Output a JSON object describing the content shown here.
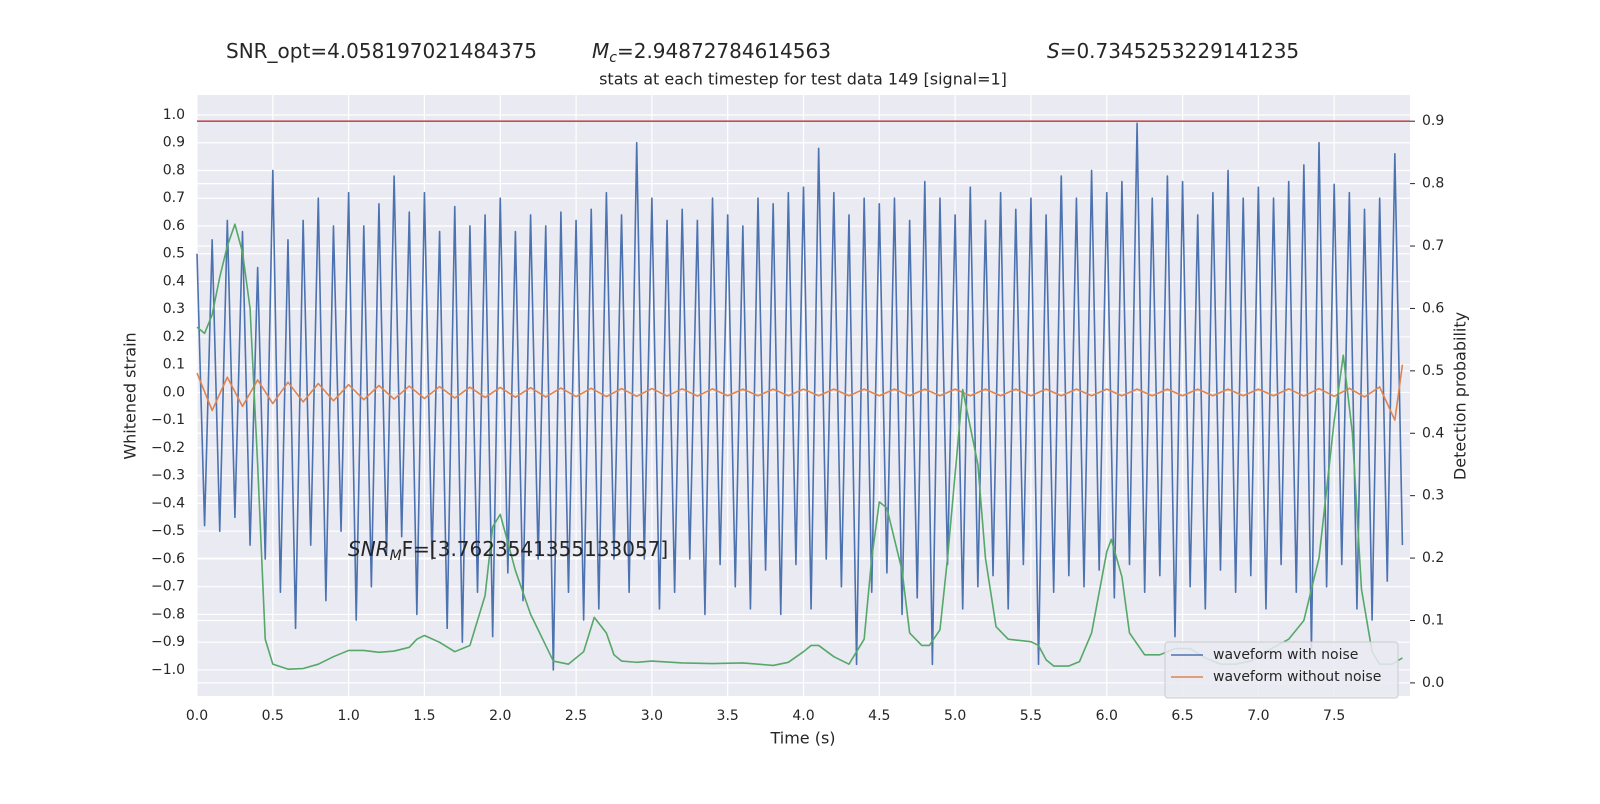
{
  "chart_data": {
    "type": "line",
    "title": "stats at each timestep for test data 149 [signal=1]",
    "stats": [
      {
        "text": "SNR_opt=4.058197021484375"
      },
      {
        "symbol": "M",
        "subscript": "c",
        "text": "=2.94872784614563"
      },
      {
        "symbol": "S",
        "text": "=0.7345253229141235"
      }
    ],
    "annotation": {
      "symbol": "SNR",
      "subscript": "M",
      "text": "F=[3.7623541355133057]"
    },
    "x_label": "Time (s)",
    "y_label": "Whitened strain",
    "y2_label": "Detection probability",
    "xlim": [
      0,
      8.0
    ],
    "ylim": [
      -1.094,
      1.072
    ],
    "y2lim": [
      -0.021,
      0.942
    ],
    "xticks": [
      {
        "value": 0,
        "label": "0.0"
      },
      0.5,
      {
        "value": 1,
        "label": "1.0"
      },
      1.5,
      {
        "value": 2,
        "label": "2.0"
      },
      2.5,
      {
        "value": 3,
        "label": "3.0"
      },
      3.5,
      {
        "value": 4,
        "label": "4.0"
      },
      4.5,
      {
        "value": 5,
        "label": "5.0"
      },
      5.5,
      {
        "value": 6,
        "label": "6.0"
      },
      6.5,
      {
        "value": 7,
        "label": "7.0"
      },
      7.5
    ],
    "yticks": [
      {
        "value": 1,
        "label": "1.0"
      },
      0.9,
      0.8,
      0.7,
      0.6,
      0.5,
      0.4,
      0.3,
      0.2,
      0.1,
      {
        "value": 0,
        "label": "0.0"
      },
      {
        "value": -0.1,
        "label": "−0.1"
      },
      {
        "value": -0.2,
        "label": "−0.2"
      },
      {
        "value": -0.3,
        "label": "−0.3"
      },
      {
        "value": -0.4,
        "label": "−0.4"
      },
      {
        "value": -0.5,
        "label": "−0.5"
      },
      {
        "value": -0.6,
        "label": "−0.6"
      },
      {
        "value": -0.7,
        "label": "−0.7"
      },
      {
        "value": -0.8,
        "label": "−0.8"
      },
      {
        "value": -0.9,
        "label": "−0.9"
      },
      {
        "value": -1,
        "label": "−1.0"
      }
    ],
    "y2ticks": [
      {
        "value": 0,
        "label": "0.0"
      },
      0.1,
      0.2,
      0.3,
      0.4,
      0.5,
      0.6,
      0.7,
      0.8,
      0.9
    ],
    "grid": true,
    "legend": "lower right",
    "hlines": [
      {
        "value": 0.9,
        "axis": "y2",
        "color": "#c44e52"
      }
    ],
    "series": [
      {
        "name": "waveform with noise",
        "color": "#4c72b0",
        "x": [
          0,
          0.05,
          0.1,
          0.15,
          0.2,
          0.25,
          0.3,
          0.35,
          0.4,
          0.45,
          0.5,
          0.55,
          0.6,
          0.65,
          0.7,
          0.75,
          0.8,
          0.85,
          0.9,
          0.95,
          1,
          1.05,
          1.1,
          1.15,
          1.2,
          1.25,
          1.3,
          1.35,
          1.4,
          1.45,
          1.5,
          1.55,
          1.6,
          1.65,
          1.7,
          1.75,
          1.8,
          1.85,
          1.9,
          1.95,
          2,
          2.05,
          2.1,
          2.15,
          2.2,
          2.25,
          2.3,
          2.35,
          2.4,
          2.45,
          2.5,
          2.55,
          2.6,
          2.65,
          2.7,
          2.75,
          2.8,
          2.85,
          2.9,
          2.95,
          3,
          3.05,
          3.1,
          3.15,
          3.2,
          3.25,
          3.3,
          3.35,
          3.4,
          3.45,
          3.5,
          3.55,
          3.6,
          3.65,
          3.7,
          3.75,
          3.8,
          3.85,
          3.9,
          3.95,
          4,
          4.05,
          4.1,
          4.15,
          4.2,
          4.25,
          4.3,
          4.35,
          4.4,
          4.45,
          4.5,
          4.55,
          4.6,
          4.65,
          4.7,
          4.75,
          4.8,
          4.85,
          4.9,
          4.95,
          5,
          5.05,
          5.1,
          5.15,
          5.2,
          5.25,
          5.3,
          5.35,
          5.4,
          5.45,
          5.5,
          5.55,
          5.6,
          5.65,
          5.7,
          5.75,
          5.8,
          5.85,
          5.9,
          5.95,
          6,
          6.05,
          6.1,
          6.15,
          6.2,
          6.25,
          6.3,
          6.35,
          6.4,
          6.45,
          6.5,
          6.55,
          6.6,
          6.65,
          6.7,
          6.75,
          6.8,
          6.85,
          6.9,
          6.95,
          7,
          7.05,
          7.1,
          7.15,
          7.2,
          7.25,
          7.3,
          7.35,
          7.4,
          7.45,
          7.5,
          7.55,
          7.6,
          7.65,
          7.7,
          7.75,
          7.8,
          7.85,
          7.9,
          7.95
        ],
        "values": [
          0.5,
          -0.48,
          0.55,
          -0.5,
          0.62,
          -0.45,
          0.58,
          -0.55,
          0.45,
          -0.6,
          0.8,
          -0.72,
          0.55,
          -0.85,
          0.62,
          -0.55,
          0.7,
          -0.75,
          0.6,
          -0.5,
          0.72,
          -0.82,
          0.6,
          -0.7,
          0.68,
          -0.58,
          0.78,
          -0.52,
          0.65,
          -0.8,
          0.72,
          -0.6,
          0.58,
          -0.85,
          0.67,
          -0.9,
          0.6,
          -0.72,
          0.64,
          -0.88,
          0.7,
          -0.65,
          0.58,
          -0.75,
          0.64,
          -0.6,
          0.6,
          -1.0,
          0.65,
          -0.72,
          0.62,
          -0.82,
          0.66,
          -0.78,
          0.72,
          -0.6,
          0.64,
          -0.72,
          0.9,
          -0.6,
          0.7,
          -0.78,
          0.62,
          -0.72,
          0.66,
          -0.6,
          0.62,
          -0.8,
          0.7,
          -0.62,
          0.64,
          -0.7,
          0.6,
          -0.78,
          0.7,
          -0.64,
          0.68,
          -0.8,
          0.72,
          -0.62,
          0.74,
          -0.78,
          0.88,
          -0.6,
          0.72,
          -0.7,
          0.64,
          -0.98,
          0.7,
          -0.72,
          0.68,
          -0.65,
          0.7,
          -0.8,
          0.62,
          -0.74,
          0.76,
          -0.98,
          0.7,
          -0.62,
          0.64,
          -0.78,
          0.74,
          -0.7,
          0.62,
          -0.66,
          0.72,
          -0.78,
          0.66,
          -0.62,
          0.7,
          -0.98,
          0.64,
          -0.72,
          0.78,
          -0.66,
          0.7,
          -0.7,
          0.8,
          -0.64,
          0.72,
          -0.74,
          0.76,
          -0.62,
          0.97,
          -0.72,
          0.7,
          -0.66,
          0.78,
          -0.88,
          0.76,
          -0.7,
          0.64,
          -0.78,
          0.72,
          -0.64,
          0.8,
          -0.72,
          0.7,
          -0.66,
          0.74,
          -0.78,
          0.7,
          -0.62,
          0.76,
          -0.72,
          0.82,
          -0.92,
          0.9,
          -0.7,
          0.75,
          -0.62,
          0.72,
          -0.78,
          0.66,
          -0.82,
          0.7,
          -0.68,
          0.86,
          -0.55
        ]
      },
      {
        "name": "waveform without noise",
        "color": "#dd8452",
        "x": [
          0,
          0.1,
          0.2,
          0.3,
          0.4,
          0.5,
          0.6,
          0.7,
          0.8,
          0.9,
          1,
          1.1,
          1.2,
          1.3,
          1.4,
          1.5,
          1.6,
          1.7,
          1.8,
          1.9,
          2,
          2.1,
          2.2,
          2.3,
          2.4,
          2.5,
          2.6,
          2.7,
          2.8,
          2.9,
          3,
          3.1,
          3.2,
          3.3,
          3.4,
          3.5,
          3.6,
          3.7,
          3.8,
          3.9,
          4,
          4.1,
          4.2,
          4.3,
          4.4,
          4.5,
          4.6,
          4.7,
          4.8,
          4.9,
          5,
          5.1,
          5.2,
          5.3,
          5.4,
          5.5,
          5.6,
          5.7,
          5.8,
          5.9,
          6,
          6.1,
          6.2,
          6.3,
          6.4,
          6.5,
          6.6,
          6.7,
          6.8,
          6.9,
          7,
          7.1,
          7.2,
          7.3,
          7.4,
          7.5,
          7.6,
          7.7,
          7.8,
          7.9,
          7.95
        ],
        "values": [
          0.07,
          -0.065,
          0.055,
          -0.05,
          0.045,
          -0.04,
          0.037,
          -0.034,
          0.032,
          -0.03,
          0.028,
          -0.026,
          0.025,
          -0.024,
          0.023,
          -0.022,
          0.021,
          -0.02,
          0.019,
          -0.018,
          0.018,
          -0.017,
          0.017,
          -0.016,
          0.016,
          -0.015,
          0.015,
          -0.015,
          0.014,
          -0.014,
          0.014,
          -0.013,
          0.013,
          -0.013,
          0.013,
          -0.012,
          0.012,
          -0.012,
          0.012,
          -0.012,
          0.012,
          -0.012,
          0.012,
          -0.012,
          0.012,
          -0.012,
          0.012,
          -0.012,
          0.012,
          -0.012,
          0.012,
          -0.012,
          0.012,
          -0.012,
          0.012,
          -0.012,
          0.012,
          -0.012,
          0.012,
          -0.012,
          0.012,
          -0.012,
          0.012,
          -0.012,
          0.012,
          -0.012,
          0.012,
          -0.012,
          0.012,
          -0.012,
          0.012,
          -0.012,
          0.013,
          -0.013,
          0.014,
          -0.014,
          0.015,
          -0.016,
          0.02,
          -0.1,
          0.1
        ]
      },
      {
        "color": "#55a868",
        "axis": "y2",
        "x": [
          0,
          0.05,
          0.1,
          0.15,
          0.2,
          0.25,
          0.3,
          0.35,
          0.4,
          0.45,
          0.5,
          0.6,
          0.7,
          0.8,
          0.9,
          1.0,
          1.1,
          1.2,
          1.3,
          1.4,
          1.45,
          1.5,
          1.6,
          1.7,
          1.8,
          1.9,
          1.95,
          2.0,
          2.1,
          2.2,
          2.3,
          2.35,
          2.45,
          2.55,
          2.62,
          2.7,
          2.75,
          2.8,
          2.9,
          3.0,
          3.2,
          3.4,
          3.6,
          3.8,
          3.9,
          4.0,
          4.05,
          4.1,
          4.2,
          4.3,
          4.4,
          4.45,
          4.5,
          4.55,
          4.65,
          4.7,
          4.78,
          4.83,
          4.9,
          4.95,
          5.05,
          5.15,
          5.2,
          5.27,
          5.35,
          5.5,
          5.55,
          5.6,
          5.65,
          5.75,
          5.82,
          5.9,
          6.0,
          6.03,
          6.1,
          6.15,
          6.25,
          6.35,
          6.45,
          6.55,
          6.65,
          6.75,
          6.85,
          6.95,
          7.05,
          7.2,
          7.3,
          7.4,
          7.5,
          7.56,
          7.62,
          7.68,
          7.75,
          7.8,
          7.88,
          7.95
        ],
        "values": [
          0.57,
          0.56,
          0.59,
          0.65,
          0.7,
          0.735,
          0.69,
          0.6,
          0.35,
          0.07,
          0.03,
          0.022,
          0.023,
          0.03,
          0.042,
          0.052,
          0.052,
          0.049,
          0.051,
          0.057,
          0.07,
          0.076,
          0.065,
          0.05,
          0.06,
          0.14,
          0.25,
          0.27,
          0.18,
          0.11,
          0.06,
          0.035,
          0.03,
          0.05,
          0.105,
          0.08,
          0.045,
          0.035,
          0.033,
          0.035,
          0.032,
          0.031,
          0.032,
          0.028,
          0.033,
          0.05,
          0.06,
          0.06,
          0.042,
          0.03,
          0.07,
          0.2,
          0.29,
          0.28,
          0.18,
          0.08,
          0.06,
          0.06,
          0.085,
          0.2,
          0.47,
          0.35,
          0.2,
          0.09,
          0.07,
          0.066,
          0.06,
          0.037,
          0.027,
          0.027,
          0.034,
          0.08,
          0.21,
          0.23,
          0.17,
          0.08,
          0.045,
          0.045,
          0.055,
          0.055,
          0.04,
          0.03,
          0.03,
          0.035,
          0.05,
          0.07,
          0.1,
          0.2,
          0.42,
          0.525,
          0.4,
          0.15,
          0.05,
          0.03,
          0.03,
          0.04
        ]
      }
    ]
  }
}
